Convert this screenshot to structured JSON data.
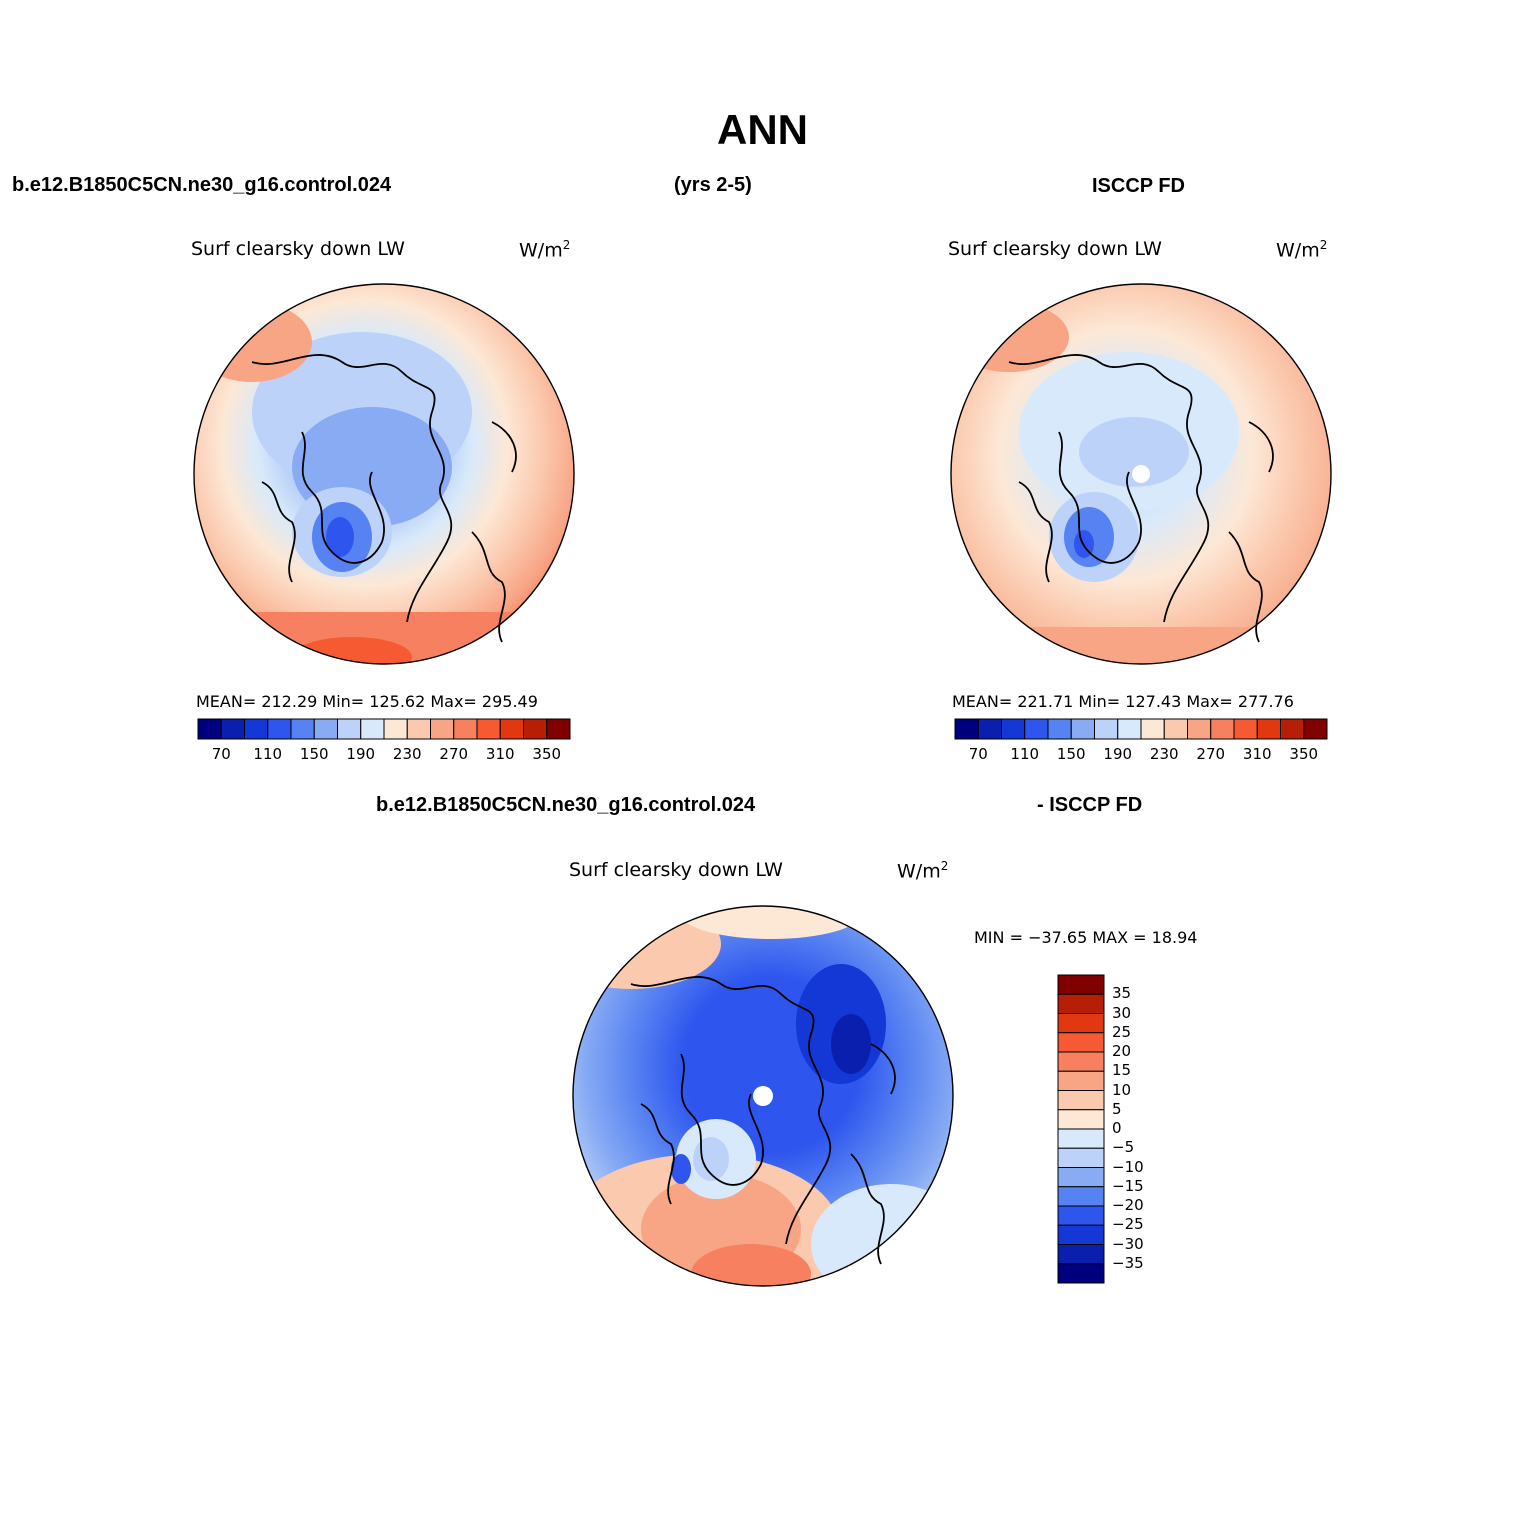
{
  "title": "ANN",
  "top_row": {
    "left_header": "b.e12.B1850C5CN.ne30_g16.control.024",
    "center_header": "(yrs 2-5)",
    "right_header": "ISCCP FD"
  },
  "panel_left": {
    "title": "Surf clearsky down LW",
    "units_base": "W/m",
    "units_exp": "2",
    "stats": "MEAN= 212.29   Min= 125.62   Max= 295.49"
  },
  "panel_right": {
    "title": "Surf clearsky down LW",
    "units_base": "W/m",
    "units_exp": "2",
    "stats": "MEAN= 221.71   Min= 127.43   Max= 277.76"
  },
  "bottom_row": {
    "left_header": "b.e12.B1850C5CN.ne30_g16.control.024",
    "right_header": "- ISCCP FD"
  },
  "panel_diff": {
    "title": "Surf clearsky down LW",
    "units_base": "W/m",
    "units_exp": "2",
    "stats": "MIN = −37.65 MAX =   18.94"
  },
  "abs_colorbar": {
    "colors": [
      "#00007f",
      "#0a1fae",
      "#1438d6",
      "#2e55ee",
      "#5682f2",
      "#88abf4",
      "#bcd2f8",
      "#d8e9fb",
      "#fde8d6",
      "#fbc9ae",
      "#f8a585",
      "#f6805f",
      "#f55a33",
      "#e13812",
      "#b61e05",
      "#800000"
    ],
    "tick_labels": [
      "70",
      "110",
      "150",
      "190",
      "230",
      "270",
      "310",
      "350"
    ]
  },
  "diff_colorbar": {
    "colors": [
      "#800000",
      "#b61e05",
      "#e13812",
      "#f55a33",
      "#f6805f",
      "#f8a585",
      "#fbc9ae",
      "#fde8d6",
      "#d8e9fb",
      "#bcd2f8",
      "#88abf4",
      "#5682f2",
      "#2e55ee",
      "#1438d6",
      "#0a1fae",
      "#00007f"
    ],
    "tick_labels": [
      "35",
      "30",
      "25",
      "20",
      "15",
      "10",
      "5",
      "0",
      "−5",
      "−10",
      "−15",
      "−20",
      "−25",
      "−30",
      "−35"
    ]
  }
}
